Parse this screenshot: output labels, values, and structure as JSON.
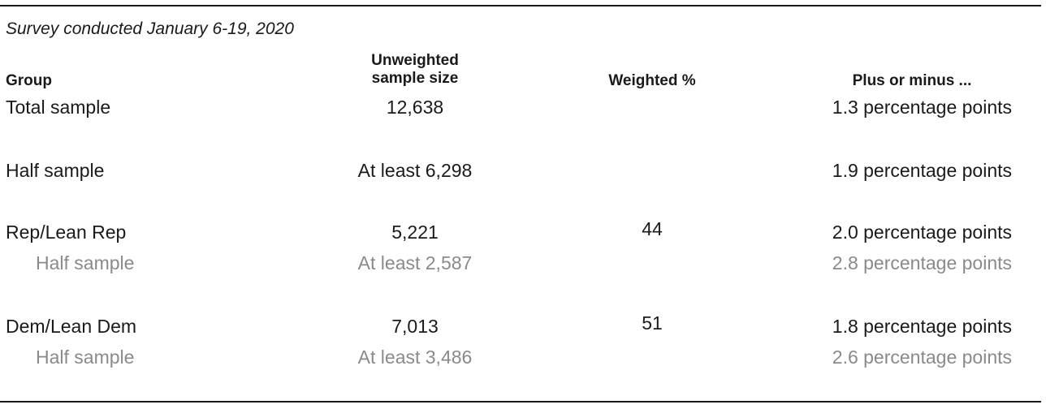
{
  "subtitle": "Survey conducted January 6-19, 2020",
  "headers": {
    "group": "Group",
    "sample_size_line1": "Unweighted",
    "sample_size_line2": "sample size",
    "weighted": "Weighted %",
    "moe": "Plus or minus ..."
  },
  "rows": [
    {
      "group": "Total sample",
      "size": "12,638",
      "weighted": "",
      "moe": "1.3 percentage points",
      "sub": false
    },
    {
      "group": "Half sample",
      "size": "At least 6,298",
      "weighted": "",
      "moe": "1.9 percentage points",
      "sub": false
    },
    {
      "group": "Rep/Lean Rep",
      "size": "5,221",
      "weighted": "44",
      "moe": "2.0 percentage points",
      "sub": false
    },
    {
      "group": "Half sample",
      "size": "At least 2,587",
      "weighted": "",
      "moe": "2.8 percentage points",
      "sub": true
    },
    {
      "group": "Dem/Lean Dem",
      "size": "7,013",
      "weighted": "51",
      "moe": "1.8 percentage points",
      "sub": false
    },
    {
      "group": "Half sample",
      "size": "At least 3,486",
      "weighted": "",
      "moe": "2.6 percentage points",
      "sub": true
    }
  ],
  "colors": {
    "text": "#1a1a1a",
    "subtext": "#8a8a8a",
    "rule": "#1a1a1a"
  }
}
